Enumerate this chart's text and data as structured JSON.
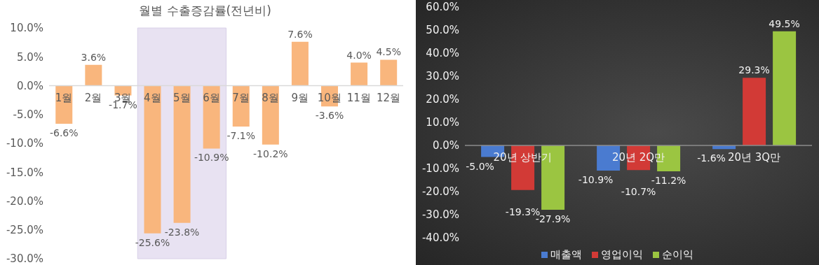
{
  "chart_data": [
    {
      "type": "bar",
      "title": "월별 수출증감률(전년비)",
      "categories": [
        "1월",
        "2월",
        "3월",
        "4월",
        "5월",
        "6월",
        "7월",
        "8월",
        "9월",
        "10월",
        "11월",
        "12월"
      ],
      "values": [
        -6.6,
        3.6,
        -1.7,
        -25.6,
        -23.8,
        -10.9,
        -7.1,
        -10.2,
        7.6,
        -3.6,
        4.0,
        4.5
      ],
      "color": "#f9b67d",
      "value_labels": [
        "-6.6%",
        "3.6%",
        "-1.7%",
        "-25.6%",
        "-23.8%",
        "-10.9%",
        "-7.1%",
        "-10.2%",
        "7.6%",
        "-3.6%",
        "4.0%",
        "4.5%"
      ],
      "ylim": [
        -30,
        10
      ],
      "yticks": [
        {
          "value": -30,
          "label": "-30.0%"
        },
        {
          "value": -25,
          "label": "-25.0%"
        },
        {
          "value": -20,
          "label": "-20.0%"
        },
        {
          "value": -15,
          "label": "-15.0%"
        },
        {
          "value": -10,
          "label": "-10.0%"
        },
        {
          "value": -5,
          "label": "-5.0%"
        },
        {
          "value": 0,
          "label": "0.0%"
        },
        {
          "value": 5,
          "label": "5.0%"
        },
        {
          "value": 10,
          "label": "10.0%"
        }
      ],
      "bands": [
        {
          "axis": "x",
          "from": "4월",
          "to": "6월",
          "color": "#e8e2f2"
        }
      ],
      "grid": false
    },
    {
      "type": "bar",
      "categories": [
        "20년 상반기",
        "20년 2Q만",
        "20년 3Q만"
      ],
      "series": [
        {
          "name": "매출액",
          "color": "#4a7bd0",
          "values": [
            -5.0,
            -10.9,
            -1.6
          ],
          "value_labels": [
            "-5.0%",
            "-10.9%",
            "-1.6%"
          ]
        },
        {
          "name": "영업이익",
          "color": "#d23a36",
          "values": [
            -19.3,
            -10.7,
            29.3
          ],
          "value_labels": [
            "-19.3%",
            "-10.7%",
            "29.3%"
          ]
        },
        {
          "name": "순이익",
          "color": "#9bc541",
          "values": [
            -27.9,
            -11.2,
            49.5
          ],
          "value_labels": [
            "-27.9%",
            "-11.2%",
            "49.5%"
          ]
        }
      ],
      "ylim": [
        -40,
        60
      ],
      "yticks": [
        {
          "value": -40,
          "label": "-40.0%"
        },
        {
          "value": -30,
          "label": "-30.0%"
        },
        {
          "value": -20,
          "label": "-20.0%"
        },
        {
          "value": -10,
          "label": "-10.0%"
        },
        {
          "value": 0,
          "label": "0.0%"
        },
        {
          "value": 10,
          "label": "10.0%"
        },
        {
          "value": 20,
          "label": "20.0%"
        },
        {
          "value": 30,
          "label": "30.0%"
        },
        {
          "value": 40,
          "label": "40.0%"
        },
        {
          "value": 50,
          "label": "50.0%"
        },
        {
          "value": 60,
          "label": "60.0%"
        }
      ],
      "grid": false,
      "legend": "bottom"
    }
  ]
}
